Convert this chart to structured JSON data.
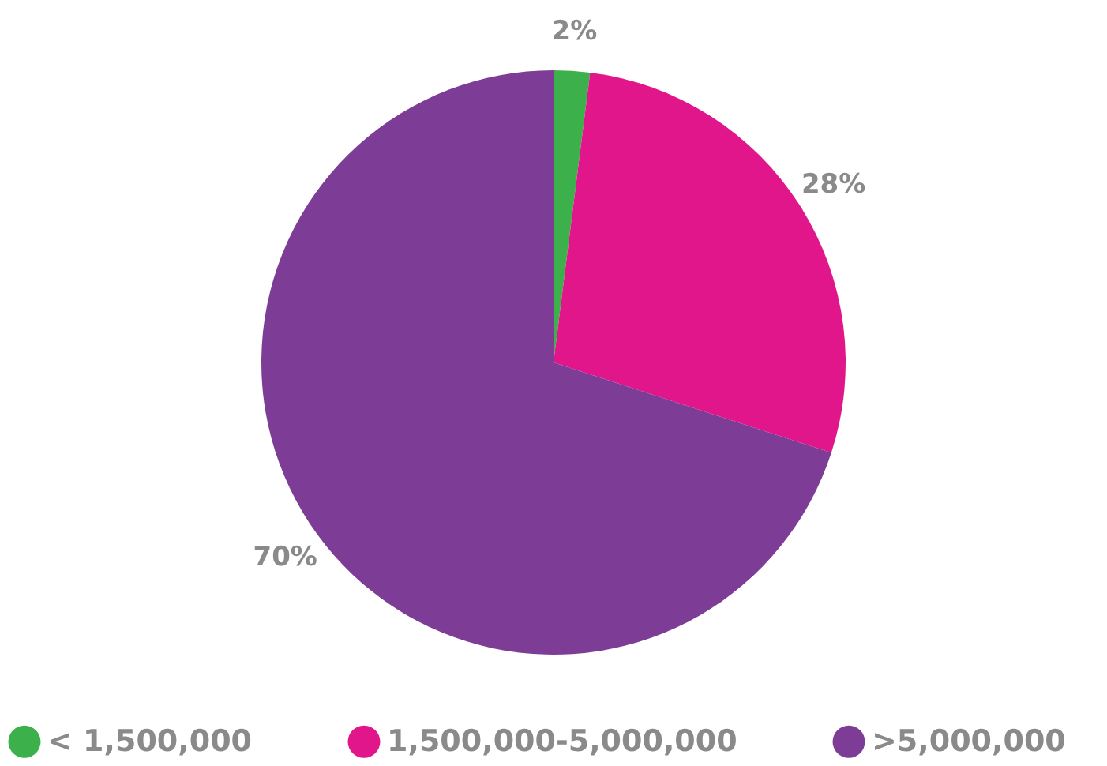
{
  "chart_data": {
    "type": "pie",
    "categories": [
      "< 1,500,000",
      "1,500,000-5,000,000",
      ">5,000,000"
    ],
    "values": [
      2,
      28,
      70
    ],
    "colors": [
      "#3cb04a",
      "#e0168a",
      "#7d3c96"
    ],
    "value_labels": [
      "2%",
      "28%",
      "70%"
    ],
    "legend": "bottom"
  }
}
